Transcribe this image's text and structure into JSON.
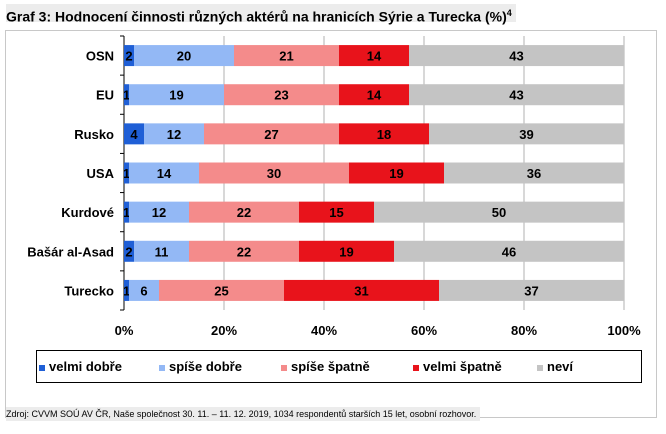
{
  "title": "Graf 3: Hodnocení činnosti různých aktérů na hranicích Sýrie a Turecka (%)",
  "title_sup": "4",
  "source": "Zdroj: CVVM SOÚ AV ČR, Naše společnost 30. 11. – 11. 12. 2019, 1034 respondentů starších 15 let, osobní rozhovor.",
  "chart_data": {
    "type": "bar",
    "orientation": "horizontal",
    "stacked": true,
    "percent_stacked": true,
    "categories": [
      "OSN",
      "EU",
      "Rusko",
      "USA",
      "Kurdové",
      "Bašár al-Asad",
      "Turecko"
    ],
    "series": [
      {
        "name": "velmi dobře",
        "color": "#1f5fd6",
        "values": [
          2,
          1,
          4,
          1,
          1,
          2,
          1
        ]
      },
      {
        "name": "spíše dobře",
        "color": "#93b8f5",
        "values": [
          20,
          19,
          12,
          14,
          12,
          11,
          6
        ]
      },
      {
        "name": "spíše špatně",
        "color": "#f48b8b",
        "values": [
          21,
          23,
          27,
          30,
          22,
          22,
          25
        ]
      },
      {
        "name": "velmi špatně",
        "color": "#e8131b",
        "values": [
          14,
          14,
          18,
          19,
          15,
          19,
          31
        ]
      },
      {
        "name": "neví",
        "color": "#c4c4c4",
        "values": [
          43,
          43,
          39,
          36,
          50,
          46,
          37
        ]
      }
    ],
    "xlim": [
      0,
      100
    ],
    "x_ticks": [
      "0%",
      "20%",
      "40%",
      "60%",
      "80%",
      "100%"
    ],
    "grid": true,
    "legend_position": "bottom"
  }
}
